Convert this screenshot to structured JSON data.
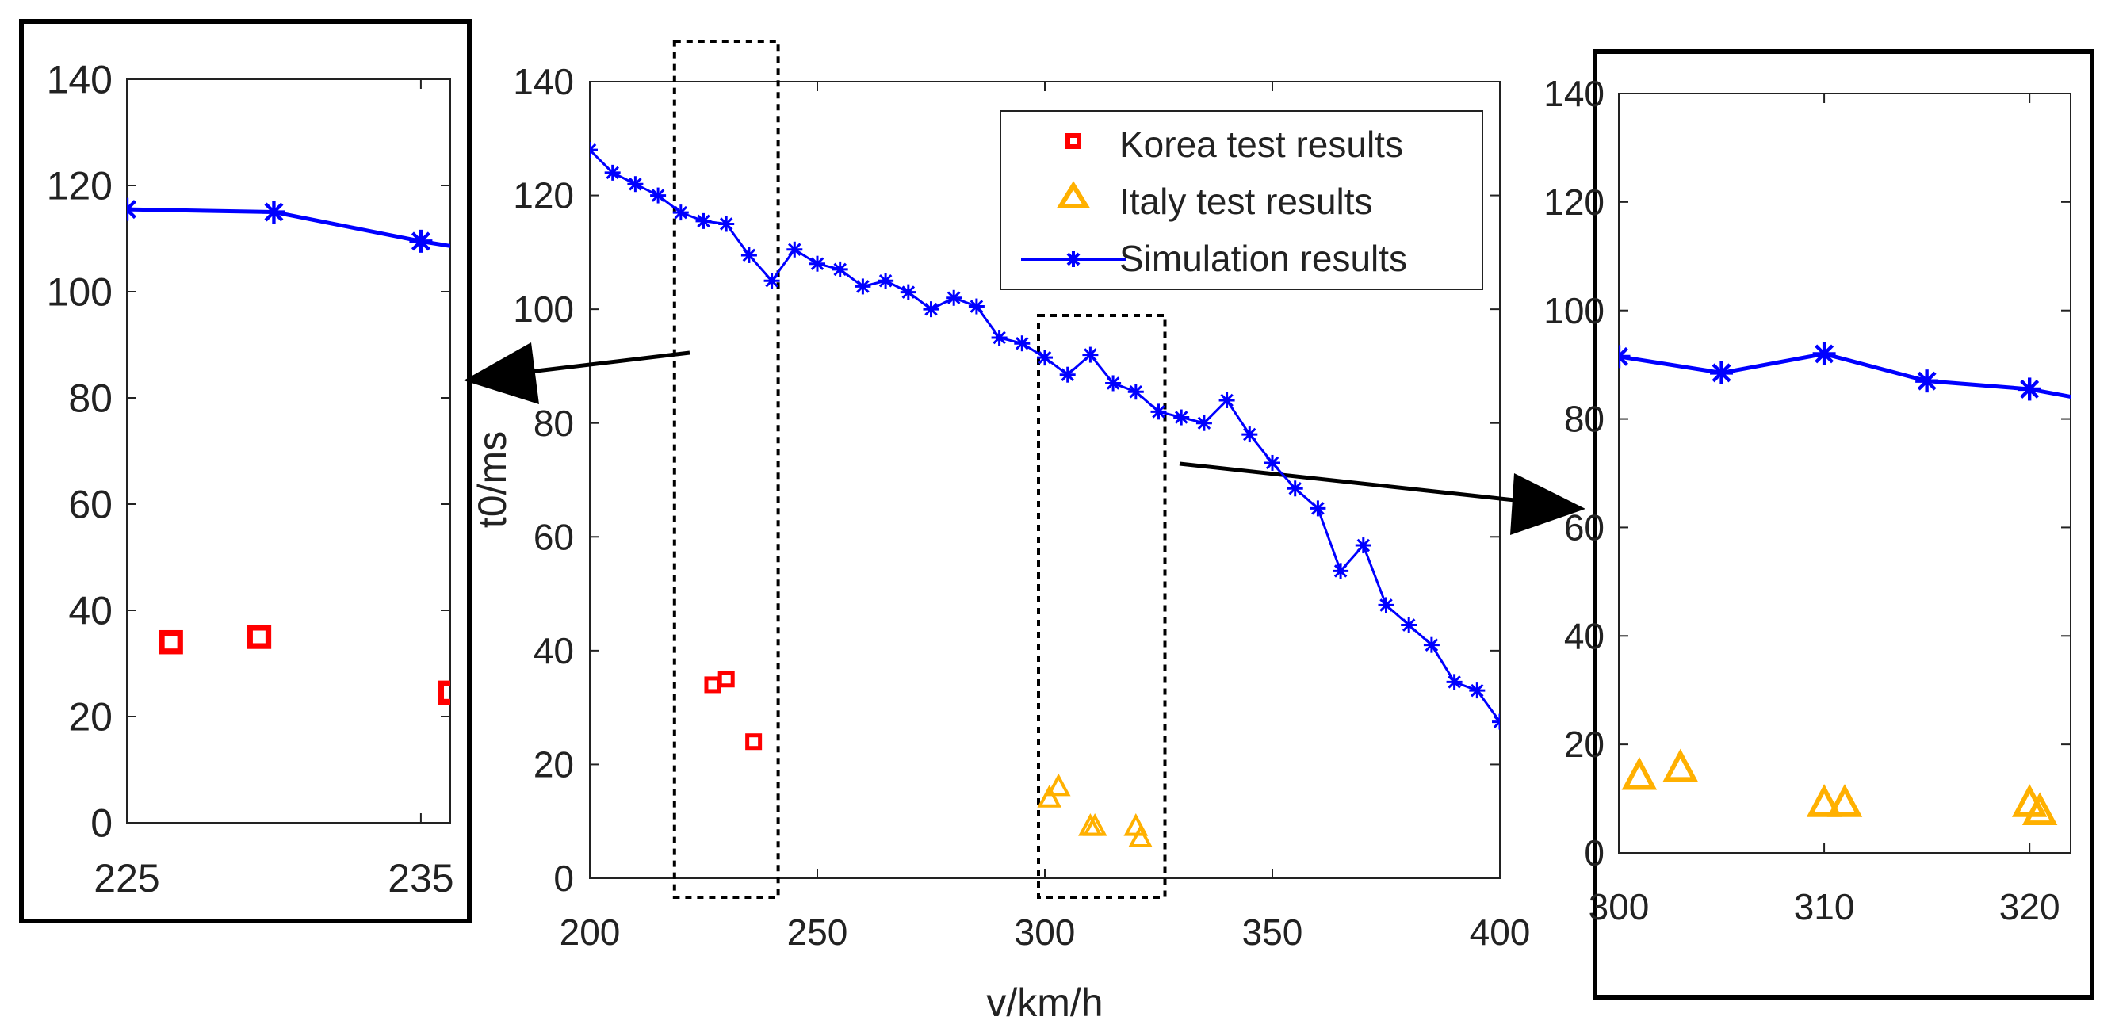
{
  "colors": {
    "korea": "#ff0000",
    "italy": "#ffb000",
    "simulation": "#0000ff",
    "axis": "#222222",
    "frame": "#000000"
  },
  "chart_data": [
    {
      "id": "main",
      "type": "line+scatter",
      "title": "",
      "xlabel": "v/km/h",
      "ylabel": "t0/ms",
      "xlim": [
        200,
        400
      ],
      "ylim": [
        0,
        140
      ],
      "xticks": [
        200,
        250,
        300,
        350,
        400
      ],
      "yticks": [
        0,
        20,
        40,
        60,
        80,
        100,
        120,
        140
      ],
      "grid": false,
      "legend_position": "top-right",
      "legend": [
        "Korea test results",
        "Italy test results",
        "Simulation results"
      ],
      "highlight_boxes": [
        {
          "x": [
            220,
            240
          ],
          "target": "zoom-left"
        },
        {
          "x": [
            300,
            325
          ],
          "target": "zoom-right"
        }
      ],
      "series": [
        {
          "name": "Korea test results",
          "style": "square",
          "x": [
            227,
            230,
            236
          ],
          "y": [
            34,
            35,
            24
          ]
        },
        {
          "name": "Italy test results",
          "style": "triangle",
          "x": [
            301,
            303,
            310,
            311,
            320,
            321
          ],
          "y": [
            14,
            16,
            9,
            9,
            9,
            7
          ]
        },
        {
          "name": "Simulation results",
          "style": "line-star",
          "x": [
            200,
            205,
            210,
            215,
            220,
            225,
            230,
            235,
            240,
            245,
            250,
            255,
            260,
            265,
            270,
            275,
            280,
            285,
            290,
            295,
            300,
            305,
            310,
            315,
            320,
            325,
            330,
            335,
            340,
            345,
            350,
            355,
            360,
            365,
            370,
            375,
            380,
            385,
            390,
            395,
            400
          ],
          "y": [
            128,
            124,
            122,
            120,
            117,
            115.5,
            115,
            109.5,
            105,
            110.5,
            108,
            107,
            104,
            105,
            103,
            100,
            102,
            100.5,
            95,
            94,
            91.5,
            88.5,
            92,
            87,
            85.5,
            82,
            81,
            80,
            84,
            78,
            73,
            68.5,
            65,
            54,
            58.5,
            48,
            44.5,
            41,
            34.5,
            33,
            27.5
          ]
        }
      ]
    },
    {
      "id": "zoom-left",
      "type": "line+scatter",
      "xlim": [
        225,
        236
      ],
      "ylim": [
        0,
        140
      ],
      "xticks": [
        225,
        235
      ],
      "yticks": [
        0,
        20,
        40,
        60,
        80,
        100,
        120,
        140
      ],
      "series": [
        {
          "name": "Korea test results",
          "style": "square",
          "x": [
            226.5,
            229.5,
            236
          ],
          "y": [
            34,
            35,
            24.5
          ]
        },
        {
          "name": "Simulation results",
          "style": "line-star",
          "x": [
            225,
            230,
            235,
            240
          ],
          "y": [
            115.5,
            115,
            109.5,
            105
          ],
          "markers_x": [
            225,
            230,
            235
          ]
        }
      ]
    },
    {
      "id": "zoom-right",
      "type": "line+scatter",
      "xlim": [
        300,
        322
      ],
      "ylim": [
        0,
        140
      ],
      "xticks": [
        300,
        310,
        320
      ],
      "yticks": [
        0,
        20,
        40,
        60,
        80,
        100,
        120,
        140
      ],
      "series": [
        {
          "name": "Italy test results",
          "style": "triangle",
          "x": [
            301,
            303,
            310,
            311,
            320,
            320.5
          ],
          "y": [
            14,
            15.5,
            9,
            9,
            9,
            7.5
          ]
        },
        {
          "name": "Simulation results",
          "style": "line-star",
          "x": [
            300,
            305,
            310,
            315,
            320,
            325
          ],
          "y": [
            91.5,
            88.5,
            92,
            87,
            85.5,
            82
          ],
          "markers_x": [
            300,
            305,
            310,
            315,
            320
          ]
        }
      ]
    }
  ]
}
